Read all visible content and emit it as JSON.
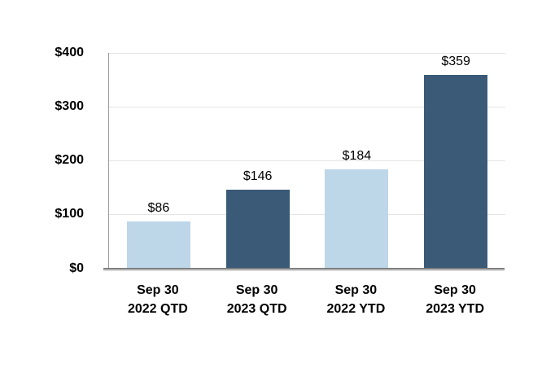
{
  "chart_data": {
    "type": "bar",
    "title": "",
    "categories": [
      "Sep 30\n2022 QTD",
      "Sep 30\n2023 QTD",
      "Sep 30\n2022 YTD",
      "Sep 30\n2023 YTD"
    ],
    "values": [
      86,
      146,
      184,
      359
    ],
    "value_labels": [
      "$86",
      "$146",
      "$184",
      "$359"
    ],
    "bar_colors": [
      "#BDD6E8",
      "#3A5A77",
      "#BDD6E8",
      "#3A5A77"
    ],
    "y_ticks": [
      0,
      100,
      200,
      300,
      400
    ],
    "y_tick_labels": [
      "$0",
      "$100",
      "$200",
      "$300",
      "$400"
    ],
    "ylim": [
      0,
      400
    ],
    "xlabel": "",
    "ylabel": "",
    "grid": "horizontal-only",
    "legend": "none"
  },
  "colors": {
    "bar_light": "#BDD6E8",
    "bar_dark": "#3A5A77",
    "gridline": "#E4E4E4",
    "axis_line": "#9B9B9B",
    "baseline": "#7F7F7F",
    "text": "#000000",
    "background": "#FFFFFF"
  }
}
